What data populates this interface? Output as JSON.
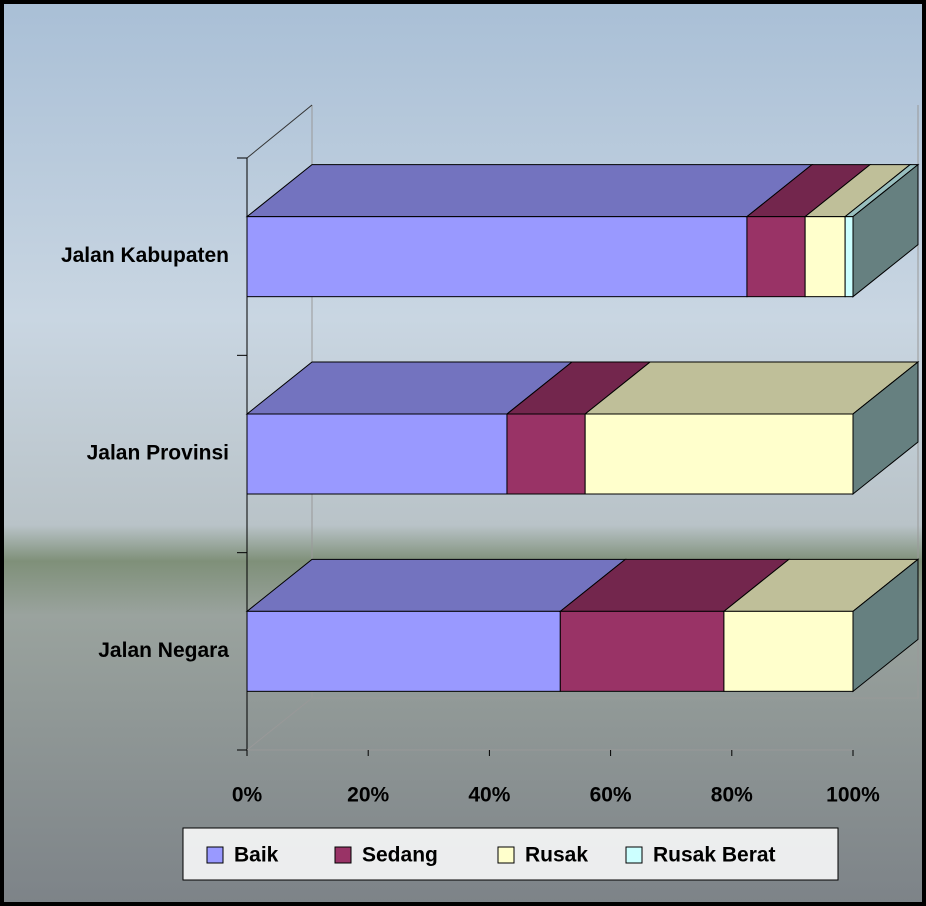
{
  "chart_data": {
    "type": "stacked-bar-3d-horizontal",
    "categories": [
      "Jalan Kabupaten",
      "Jalan Provinsi",
      "Jalan Negara"
    ],
    "series": [
      {
        "name": "Baik",
        "color": "#9999ff",
        "values": [
          82.5,
          42.9,
          51.7
        ]
      },
      {
        "name": "Sedang",
        "color": "#993366",
        "values": [
          9.6,
          12.9,
          27.0
        ]
      },
      {
        "name": "Rusak",
        "color": "#ffffcc",
        "values": [
          6.6,
          44.2,
          21.3
        ]
      },
      {
        "name": "Rusak Berat",
        "color": "#ccffff",
        "values": [
          1.3,
          0,
          0
        ]
      }
    ],
    "xlim": [
      0,
      100
    ],
    "xticks": [
      {
        "value": 0,
        "label": "0%"
      },
      {
        "value": 20,
        "label": "20%"
      },
      {
        "value": 40,
        "label": "40%"
      },
      {
        "value": 60,
        "label": "60%"
      },
      {
        "value": 80,
        "label": "80%"
      },
      {
        "value": 100,
        "label": "100%"
      }
    ],
    "legend": "bottom"
  }
}
